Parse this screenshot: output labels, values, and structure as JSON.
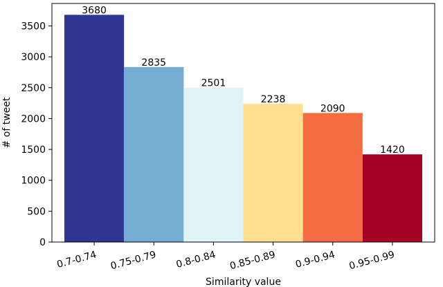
{
  "chart_data": {
    "type": "bar",
    "title": "",
    "xlabel": "Similarity value",
    "ylabel": "# of tweet",
    "categories": [
      "0.7-0.74",
      "0.75-0.79",
      "0.8-0.84",
      "0.85-0.89",
      "0.9-0.94",
      "0.95-0.99"
    ],
    "values": [
      3680,
      2835,
      2501,
      2238,
      2090,
      1420
    ],
    "data_labels": [
      "3680",
      "2835",
      "2501",
      "2238",
      "2090",
      "1420"
    ],
    "colors": [
      "#313695",
      "#74add1",
      "#e0f3f8",
      "#fee090",
      "#f46d43",
      "#a50026"
    ],
    "ylim": [
      0,
      3864
    ],
    "yticks": [
      0,
      500,
      1000,
      1500,
      2000,
      2500,
      3000,
      3500
    ],
    "ytick_labels": [
      "0",
      "500",
      "1000",
      "1500",
      "2000",
      "2500",
      "3000",
      "3500"
    ],
    "xtick_rotation": "rotated",
    "grid": false,
    "legend": "none"
  }
}
